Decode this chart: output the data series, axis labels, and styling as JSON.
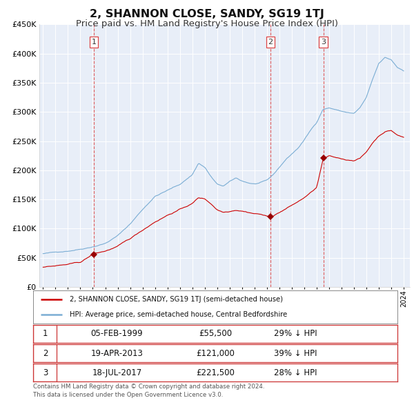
{
  "title": "2, SHANNON CLOSE, SANDY, SG19 1TJ",
  "subtitle": "Price paid vs. HM Land Registry's House Price Index (HPI)",
  "title_fontsize": 11.5,
  "subtitle_fontsize": 9.5,
  "bg_color": "#ffffff",
  "plot_bg_color": "#e8eef8",
  "grid_color": "#ffffff",
  "ylim": [
    0,
    450000
  ],
  "yticks": [
    0,
    50000,
    100000,
    150000,
    200000,
    250000,
    300000,
    350000,
    400000,
    450000
  ],
  "sale_dates": [
    1999.09,
    2013.29,
    2017.54
  ],
  "sale_prices": [
    55500,
    121000,
    221500
  ],
  "sale_labels": [
    "1",
    "2",
    "3"
  ],
  "sale_date_strs": [
    "05-FEB-1999",
    "19-APR-2013",
    "18-JUL-2017"
  ],
  "sale_price_strs": [
    "£55,500",
    "£121,000",
    "£221,500"
  ],
  "sale_pct_strs": [
    "29% ↓ HPI",
    "39% ↓ HPI",
    "28% ↓ HPI"
  ],
  "red_line_color": "#cc0000",
  "blue_line_color": "#7aadd4",
  "marker_color": "#990000",
  "vline_color": "#dd4444",
  "legend_label_red": "2, SHANNON CLOSE, SANDY, SG19 1TJ (semi-detached house)",
  "legend_label_blue": "HPI: Average price, semi-detached house, Central Bedfordshire",
  "footer_text": "Contains HM Land Registry data © Crown copyright and database right 2024.\nThis data is licensed under the Open Government Licence v3.0.",
  "xmin": 1994.7,
  "xmax": 2024.5
}
